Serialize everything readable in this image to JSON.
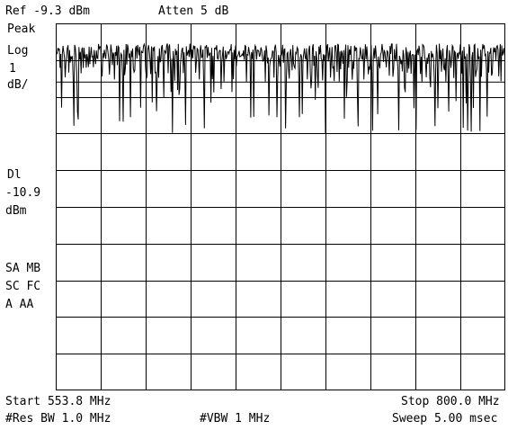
{
  "header": {
    "ref_level": "Ref -9.3 dBm",
    "attenuation": "Atten 5 dB"
  },
  "left_panel": {
    "detector": "Peak",
    "scale_mode": "Log",
    "scale_value": "1",
    "scale_unit": "dB/",
    "display_line_label": "Dl",
    "display_line_value": "-10.9",
    "display_line_unit": "dBm",
    "status_line_1": "SA MB",
    "status_line_2": "SC FC",
    "status_line_3": "A  AA"
  },
  "footer": {
    "start": "Start 553.8 MHz",
    "stop": "Stop 800.0 MHz",
    "res_bw": "#Res BW 1.0 MHz",
    "vbw": "#VBW 1 MHz",
    "sweep": "Sweep 5.00 msec"
  },
  "chart_data": {
    "type": "line",
    "title": "",
    "xlabel": "",
    "ylabel": "",
    "x_start_mhz": 553.8,
    "x_stop_mhz": 800.0,
    "ref_level_dbm": -9.3,
    "scale_db_per_div": 1,
    "display_line_dbm": -10.9,
    "grid": true,
    "x_divisions": 10,
    "y_divisions": 10,
    "trace_description": "Dense noise-like spectrum sitting near -10.3 dBm (top ~ -9.8 dBm) with frequent deep downward spikes reaching about -11 to -12.3 dBm across the full span"
  }
}
